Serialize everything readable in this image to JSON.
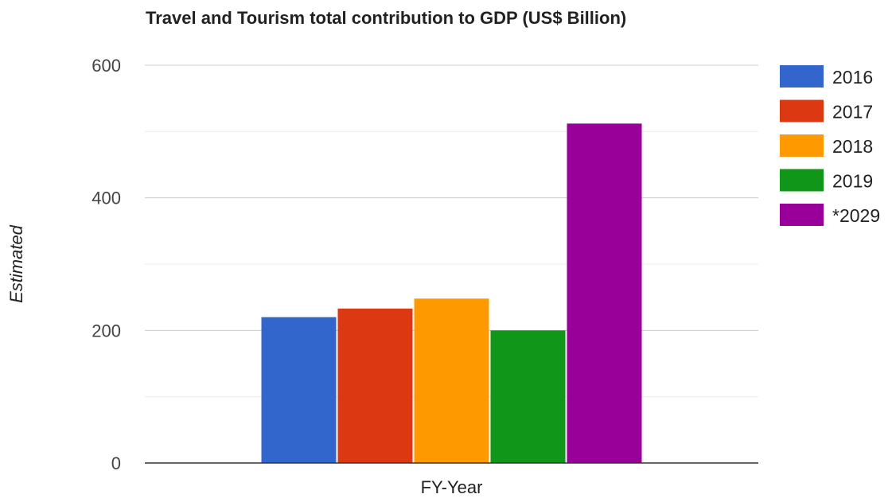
{
  "chart_data": {
    "type": "bar",
    "title": "Travel and Tourism total contribution to GDP (US$ Billion)",
    "xlabel": "FY-Year",
    "ylabel": "Estimated",
    "ylim": [
      0,
      600
    ],
    "yticks": [
      0,
      200,
      400,
      600
    ],
    "grid": true,
    "legend_position": "right",
    "categories": [
      "FY-Year"
    ],
    "series": [
      {
        "name": "2016",
        "values": [
          220
        ],
        "color": "#3366cc"
      },
      {
        "name": "2017",
        "values": [
          233
        ],
        "color": "#dc3912"
      },
      {
        "name": "2018",
        "values": [
          248
        ],
        "color": "#ff9900"
      },
      {
        "name": "2019",
        "values": [
          200
        ],
        "color": "#109618"
      },
      {
        "name": "*2029",
        "values": [
          512
        ],
        "color": "#990099"
      }
    ]
  }
}
